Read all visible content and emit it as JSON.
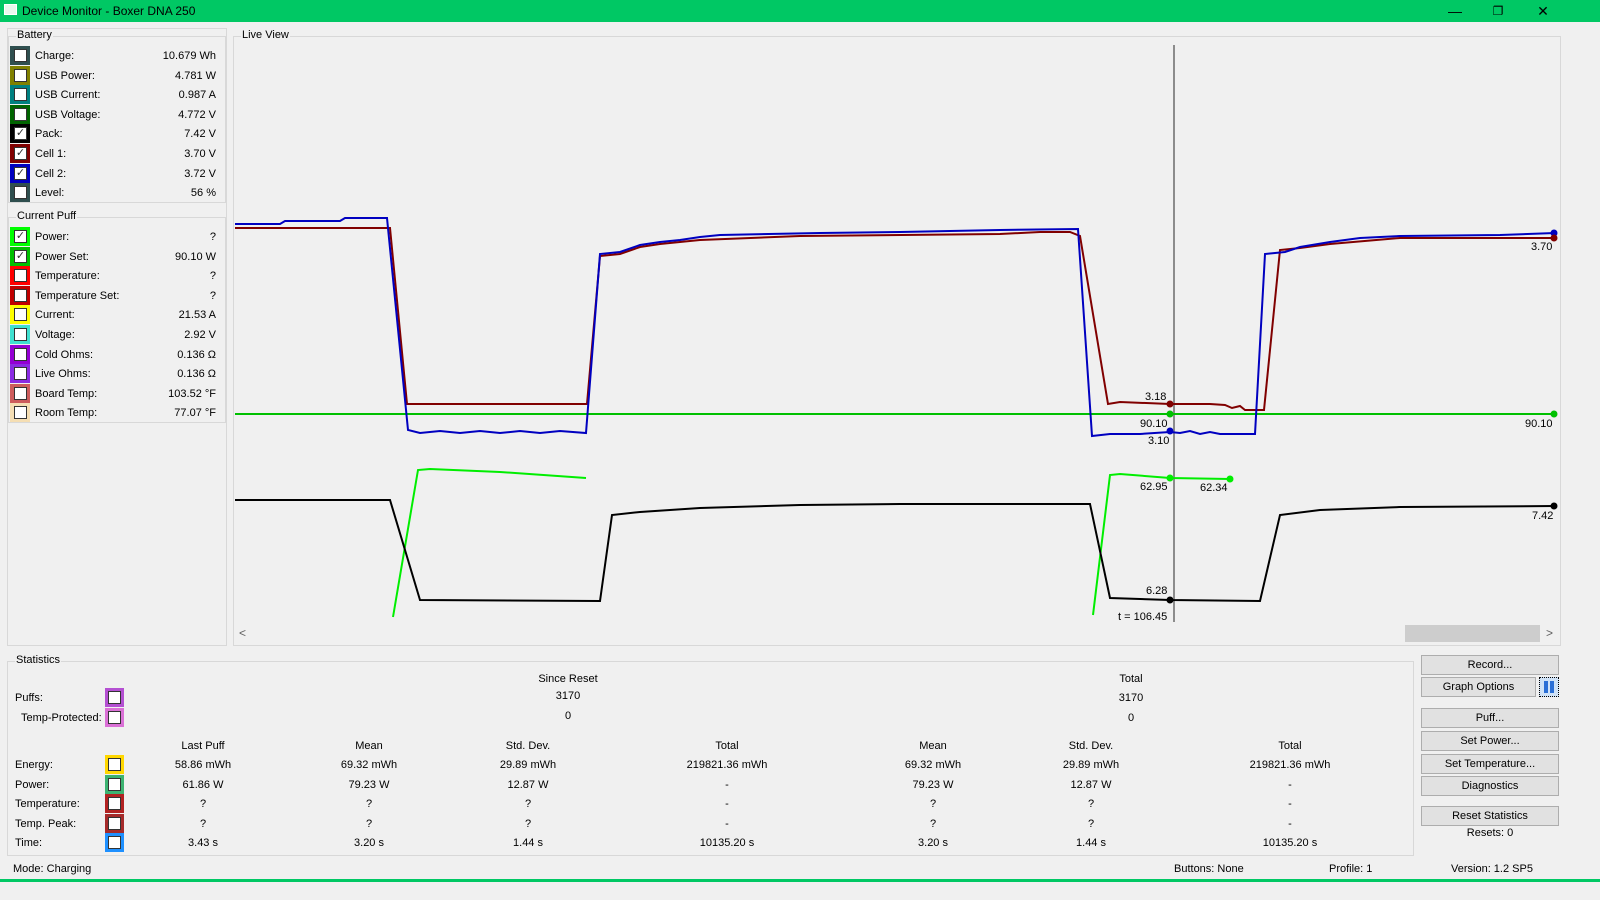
{
  "window": {
    "title": "Device Monitor - Boxer DNA 250",
    "minimize": "—",
    "restore": "❐",
    "close": "✕",
    "title_color": "#00c864"
  },
  "battery": {
    "title": "Battery",
    "items": [
      {
        "label": "Charge:",
        "value": "10.679 Wh",
        "color": "#2f4f4f",
        "checked": false
      },
      {
        "label": "USB Power:",
        "value": "4.781 W",
        "color": "#808000",
        "checked": false
      },
      {
        "label": "USB Current:",
        "value": "0.987 A",
        "color": "#008080",
        "checked": false
      },
      {
        "label": "USB Voltage:",
        "value": "4.772 V",
        "color": "#006400",
        "checked": false
      },
      {
        "label": "Pack:",
        "value": "7.42 V",
        "color": "#000000",
        "checked": true
      },
      {
        "label": "Cell 1:",
        "value": "3.70 V",
        "color": "#800000",
        "checked": true
      },
      {
        "label": "Cell 2:",
        "value": "3.72 V",
        "color": "#0000c0",
        "checked": true
      },
      {
        "label": "Level:",
        "value": "56 %",
        "color": "#2f4f4f",
        "checked": false
      }
    ]
  },
  "puff": {
    "title": "Current Puff",
    "items": [
      {
        "label": "Power:",
        "value": "?",
        "color": "#00ff00",
        "checked": true
      },
      {
        "label": "Power Set:",
        "value": "90.10 W",
        "color": "#00c000",
        "checked": true
      },
      {
        "label": "Temperature:",
        "value": "?",
        "color": "#ff0000",
        "checked": false
      },
      {
        "label": "Temperature Set:",
        "value": "?",
        "color": "#c00000",
        "checked": false
      },
      {
        "label": "Current:",
        "value": "21.53 A",
        "color": "#ffff00",
        "checked": false
      },
      {
        "label": "Voltage:",
        "value": "2.92 V",
        "color": "#40e0d0",
        "checked": false
      },
      {
        "label": "Cold Ohms:",
        "value": "0.136 Ω",
        "color": "#9400d3",
        "checked": false
      },
      {
        "label": "Live Ohms:",
        "value": "0.136 Ω",
        "color": "#8a2be2",
        "checked": false
      },
      {
        "label": "Board Temp:",
        "value": "103.52 °F",
        "color": "#cd5c5c",
        "checked": false
      },
      {
        "label": "Room Temp:",
        "value": "77.07 °F",
        "color": "#f5deb3",
        "checked": false
      }
    ]
  },
  "live_view": {
    "title": "Live View",
    "cursor_time": "t = 106.45",
    "cursor_labels": {
      "cell1": "3.18",
      "power_set": "90.10",
      "cell2": "3.10",
      "power": "62.95",
      "power_end": "62.34",
      "pack": "6.28"
    },
    "right_labels": {
      "cell1": "3.70",
      "power_set": "90.10",
      "pack": "7.42"
    },
    "scroll_left": "<",
    "scroll_right": ">"
  },
  "statistics": {
    "title": "Statistics",
    "puffs_label": "Puffs:",
    "temp_protected_label": "Temp-Protected:",
    "puffs_color": "#b450d2",
    "temp_protected_color": "#da70d6",
    "since_reset": {
      "title": "Since Reset",
      "puffs": "3170",
      "temp_protected": "0"
    },
    "total": {
      "title": "Total",
      "puffs": "3170",
      "temp_protected": "0"
    },
    "columns": [
      "Last Puff",
      "Mean",
      "Std. Dev.",
      "Total",
      "Mean",
      "Std. Dev.",
      "Total"
    ],
    "rows": [
      {
        "label": "Energy:",
        "color": "#ffd700",
        "values": [
          "58.86 mWh",
          "69.32 mWh",
          "29.89 mWh",
          "219821.36 mWh",
          "69.32 mWh",
          "29.89 mWh",
          "219821.36 mWh"
        ]
      },
      {
        "label": "Power:",
        "color": "#3cb371",
        "values": [
          "61.86 W",
          "79.23 W",
          "12.87 W",
          "-",
          "79.23 W",
          "12.87 W",
          "-"
        ]
      },
      {
        "label": "Temperature:",
        "color": "#b22222",
        "values": [
          "?",
          "?",
          "?",
          "-",
          "?",
          "?",
          "-"
        ]
      },
      {
        "label": "Temp. Peak:",
        "color": "#a52a2a",
        "values": [
          "?",
          "?",
          "?",
          "-",
          "?",
          "?",
          "-"
        ]
      },
      {
        "label": "Time:",
        "color": "#1e90ff",
        "values": [
          "3.43 s",
          "3.20 s",
          "1.44 s",
          "10135.20 s",
          "3.20 s",
          "1.44 s",
          "10135.20 s"
        ]
      }
    ]
  },
  "buttons": {
    "record": "Record...",
    "graph_options": "Graph Options",
    "puff": "Puff...",
    "set_power": "Set Power...",
    "set_temperature": "Set Temperature...",
    "diagnostics": "Diagnostics",
    "reset_statistics": "Reset Statistics",
    "resets": "Resets: 0"
  },
  "status": {
    "mode": "Mode: Charging",
    "buttons": "Buttons: None",
    "profile": "Profile: 1",
    "version": "Version: 1.2 SP5"
  }
}
